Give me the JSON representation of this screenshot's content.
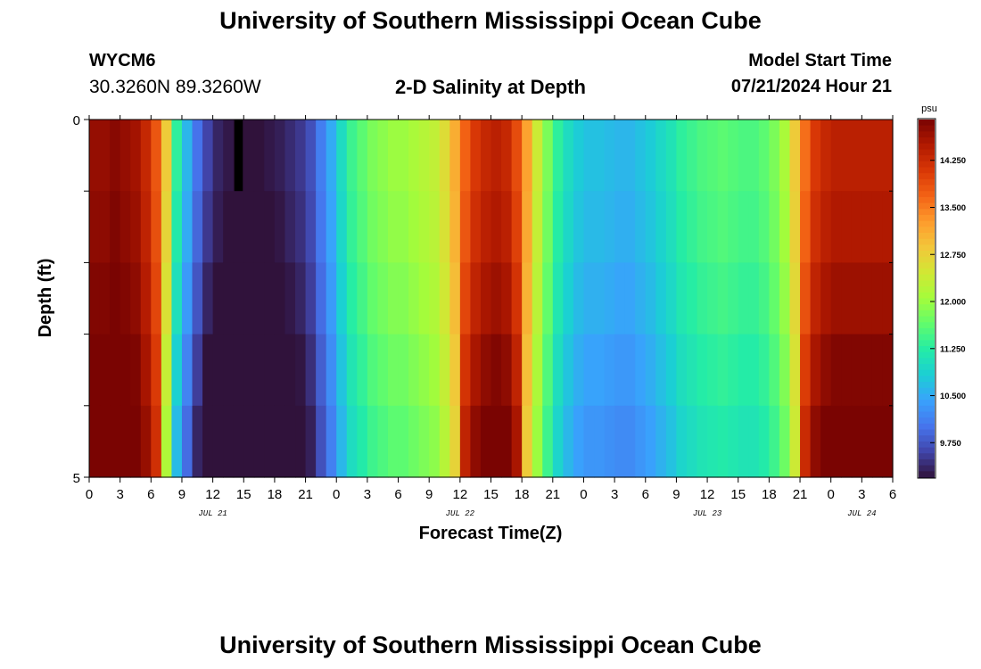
{
  "page": {
    "title": "University of Southern Mississippi Ocean Cube",
    "bottom_title": "University of Southern Mississippi Ocean Cube",
    "station_id": "WYCM6",
    "station_coords": "30.3260N  89.3260W",
    "model_start_label": "Model Start Time",
    "model_start_value": "07/21/2024 Hour 21"
  },
  "chart_data": {
    "type": "heatmap",
    "title": "2-D Salinity at Depth",
    "xlabel": "Forecast Time(Z)",
    "ylabel": "Depth (ft)",
    "units": "psu",
    "xlim_hours": [
      0,
      78
    ],
    "ylim": [
      0,
      5
    ],
    "y_ticks": [
      0,
      1,
      2,
      3,
      4,
      5
    ],
    "y_tick_labels": [
      "0",
      "",
      "",
      "",
      "",
      "5"
    ],
    "x_tick_labels": [
      "0",
      "3",
      "6",
      "9",
      "12",
      "15",
      "18",
      "21",
      "0",
      "3",
      "6",
      "9",
      "12",
      "15",
      "18",
      "21",
      "0",
      "3",
      "6",
      "9",
      "12",
      "15",
      "18",
      "21",
      "0",
      "3",
      "6"
    ],
    "date_labels": [
      {
        "text": "JUL 21",
        "hour": 12
      },
      {
        "text": "JUL 22",
        "hour": 36
      },
      {
        "text": "JUL 23",
        "hour": 60
      },
      {
        "text": "JUL 24",
        "hour": 75
      }
    ],
    "depth_rows": [
      0.5,
      1.5,
      2.5,
      3.5,
      4.5
    ],
    "surface_series": [
      14.7,
      14.7,
      14.8,
      14.7,
      14.6,
      14.3,
      13.8,
      12.8,
      11.3,
      10.6,
      10.0,
      9.6,
      9.35,
      9.25,
      9.15,
      9.15,
      9.2,
      9.25,
      9.3,
      9.4,
      9.5,
      9.7,
      10.1,
      10.5,
      11.0,
      11.4,
      11.6,
      11.8,
      11.9,
      12.0,
      12.0,
      12.1,
      12.2,
      12.3,
      12.6,
      13.1,
      13.7,
      14.1,
      14.3,
      14.4,
      14.3,
      13.9,
      13.2,
      12.4,
      11.8,
      11.3,
      11.0,
      10.8,
      10.7,
      10.7,
      10.65,
      10.6,
      10.6,
      10.7,
      10.8,
      10.95,
      11.1,
      11.3,
      11.4,
      11.5,
      11.55,
      11.6,
      11.55,
      11.5,
      11.5,
      11.6,
      11.8,
      12.1,
      12.8,
      13.6,
      14.1,
      14.3,
      14.4,
      14.4,
      14.4,
      14.4,
      14.4,
      14.4
    ],
    "depth_offsets_psu": [
      0.0,
      0.1,
      0.25,
      0.45,
      0.65
    ],
    "colorbar_ticks": [
      9.75,
      10.5,
      11.25,
      12.0,
      12.75,
      13.5,
      14.25
    ],
    "colorbar_labels": [
      "9.750",
      "10.500",
      "11.250",
      "12.000",
      "12.750",
      "13.500",
      "14.250"
    ],
    "color_range": [
      9.2,
      14.9
    ],
    "missing_cell": {
      "hour": 14.5,
      "depth_row": 0,
      "color": "#000000"
    },
    "colormap": [
      "#30123b",
      "#4145ab",
      "#4675ed",
      "#39a2fc",
      "#1bcfd4",
      "#24eca6",
      "#61fc6c",
      "#a4fc3b",
      "#d1e834",
      "#f3c63a",
      "#fe9b2d",
      "#f36315",
      "#d93806",
      "#b11901",
      "#7a0402"
    ]
  }
}
